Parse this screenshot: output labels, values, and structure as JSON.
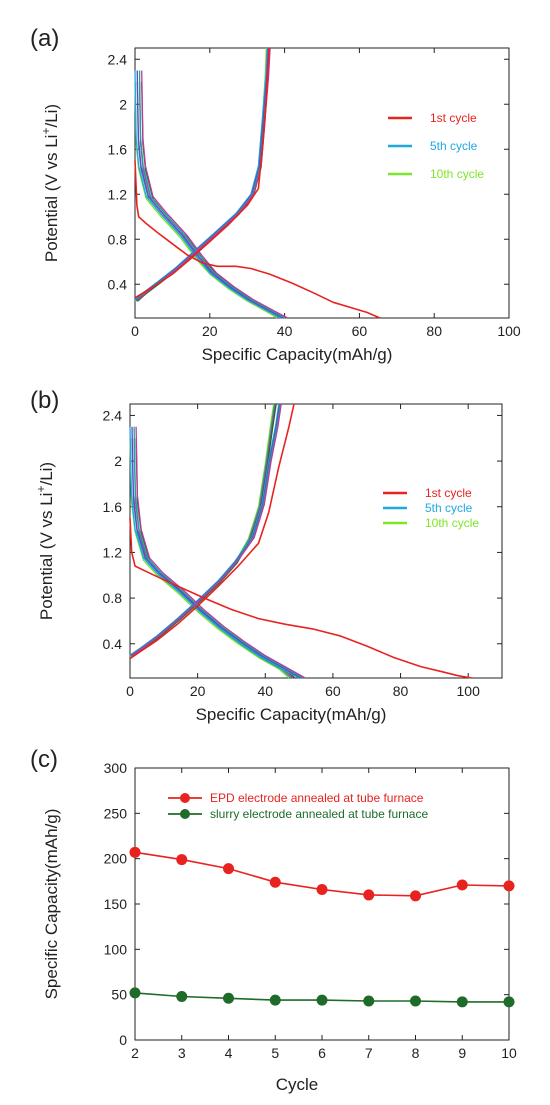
{
  "chart_data": [
    {
      "panel": "(a)",
      "type": "line",
      "xlabel": "Specific Capacity(mAh/g)",
      "ylabel": "Potential (V vs Li",
      "ylabel_sup": "+",
      "ylabel_end": "/Li)",
      "xlim": [
        0,
        100
      ],
      "ylim": [
        0.1,
        2.5
      ],
      "xticks": [
        0,
        20,
        40,
        60,
        80,
        100
      ],
      "yticks": [
        0.4,
        0.8,
        1.2,
        1.6,
        2,
        2.4
      ],
      "legend_position": "right",
      "series": [
        {
          "name": "1st cycle",
          "color": "#e8231f",
          "discharge": [
            [
              0,
              1.5
            ],
            [
              0.5,
              1.1
            ],
            [
              1,
              1.0
            ],
            [
              3,
              0.94
            ],
            [
              6,
              0.86
            ],
            [
              10,
              0.76
            ],
            [
              14,
              0.66
            ],
            [
              18,
              0.59
            ],
            [
              22,
              0.56
            ],
            [
              27,
              0.56
            ],
            [
              31,
              0.54
            ],
            [
              36,
              0.49
            ],
            [
              42,
              0.41
            ],
            [
              48,
              0.32
            ],
            [
              53,
              0.24
            ],
            [
              58,
              0.19
            ],
            [
              62,
              0.15
            ],
            [
              65.5,
              0.1
            ]
          ],
          "charge": [
            [
              0,
              0.28
            ],
            [
              1,
              0.3
            ],
            [
              5,
              0.38
            ],
            [
              10,
              0.49
            ],
            [
              15,
              0.63
            ],
            [
              20,
              0.78
            ],
            [
              25,
              0.93
            ],
            [
              30,
              1.1
            ],
            [
              33,
              1.25
            ],
            [
              34,
              1.6
            ],
            [
              35,
              2.0
            ],
            [
              35.8,
              2.5
            ]
          ]
        },
        {
          "name": "5th cycle",
          "color": "#1fa9e1",
          "discharge": [
            [
              0,
              2.3
            ],
            [
              0.3,
              1.7
            ],
            [
              1,
              1.45
            ],
            [
              3,
              1.18
            ],
            [
              7,
              1.02
            ],
            [
              12,
              0.84
            ],
            [
              16,
              0.66
            ],
            [
              20,
              0.5
            ],
            [
              25,
              0.37
            ],
            [
              30,
              0.26
            ],
            [
              35,
              0.17
            ],
            [
              39,
              0.1
            ]
          ],
          "charge": [
            [
              0,
              0.26
            ],
            [
              2,
              0.32
            ],
            [
              6,
              0.42
            ],
            [
              11,
              0.55
            ],
            [
              16,
              0.7
            ],
            [
              22,
              0.88
            ],
            [
              27,
              1.03
            ],
            [
              31,
              1.2
            ],
            [
              33,
              1.45
            ],
            [
              34,
              1.85
            ],
            [
              35,
              2.25
            ],
            [
              35.4,
              2.5
            ]
          ]
        },
        {
          "name": "10th cycle",
          "color": "#7fe52a",
          "discharge": [
            [
              0,
              2.2
            ],
            [
              0.3,
              1.65
            ],
            [
              1,
              1.42
            ],
            [
              3,
              1.16
            ],
            [
              7,
              1.0
            ],
            [
              12,
              0.82
            ],
            [
              16,
              0.64
            ],
            [
              20,
              0.49
            ],
            [
              25,
              0.36
            ],
            [
              30,
              0.25
            ],
            [
              35,
              0.16
            ],
            [
              38,
              0.1
            ]
          ],
          "charge": [
            [
              0,
              0.25
            ],
            [
              2,
              0.31
            ],
            [
              6,
              0.41
            ],
            [
              11,
              0.54
            ],
            [
              16,
              0.69
            ],
            [
              22,
              0.87
            ],
            [
              27,
              1.02
            ],
            [
              31,
              1.19
            ],
            [
              33,
              1.44
            ],
            [
              34,
              1.84
            ],
            [
              34.8,
              2.25
            ],
            [
              35.1,
              2.5
            ]
          ]
        }
      ]
    },
    {
      "panel": "(b)",
      "type": "line",
      "xlabel": "Specific Capacity(mAh/g)",
      "ylabel": "Potential (V vs Li",
      "ylabel_sup": "+",
      "ylabel_end": "/Li)",
      "xlim": [
        0,
        110
      ],
      "ylim": [
        0.1,
        2.5
      ],
      "xticks": [
        0,
        20,
        40,
        60,
        80,
        100
      ],
      "yticks": [
        0.4,
        0.8,
        1.2,
        1.6,
        2,
        2.4
      ],
      "legend_position": "right",
      "series": [
        {
          "name": "1st cycle",
          "color": "#e8231f",
          "discharge": [
            [
              0,
              1.5
            ],
            [
              0.5,
              1.2
            ],
            [
              1.5,
              1.08
            ],
            [
              5,
              1.03
            ],
            [
              10,
              0.96
            ],
            [
              16,
              0.88
            ],
            [
              22,
              0.8
            ],
            [
              30,
              0.7
            ],
            [
              38,
              0.62
            ],
            [
              46,
              0.57
            ],
            [
              54,
              0.53
            ],
            [
              62,
              0.47
            ],
            [
              70,
              0.38
            ],
            [
              78,
              0.28
            ],
            [
              86,
              0.2
            ],
            [
              93,
              0.15
            ],
            [
              97,
              0.12
            ],
            [
              101,
              0.1
            ]
          ],
          "charge": [
            [
              0,
              0.27
            ],
            [
              3,
              0.33
            ],
            [
              8,
              0.43
            ],
            [
              14,
              0.57
            ],
            [
              20,
              0.73
            ],
            [
              26,
              0.9
            ],
            [
              32,
              1.08
            ],
            [
              38,
              1.28
            ],
            [
              41,
              1.55
            ],
            [
              44,
              1.95
            ],
            [
              47,
              2.3
            ],
            [
              48.5,
              2.5
            ]
          ]
        },
        {
          "name": "5th cycle",
          "color": "#1fa9e1",
          "discharge": [
            [
              0,
              2.3
            ],
            [
              0.4,
              1.7
            ],
            [
              1.5,
              1.4
            ],
            [
              4,
              1.15
            ],
            [
              8,
              1.02
            ],
            [
              14,
              0.87
            ],
            [
              20,
              0.7
            ],
            [
              26,
              0.55
            ],
            [
              32,
              0.42
            ],
            [
              38,
              0.3
            ],
            [
              44,
              0.2
            ],
            [
              50,
              0.1
            ]
          ],
          "charge": [
            [
              0,
              0.3
            ],
            [
              3,
              0.36
            ],
            [
              8,
              0.47
            ],
            [
              14,
              0.62
            ],
            [
              20,
              0.78
            ],
            [
              26,
              0.95
            ],
            [
              31,
              1.12
            ],
            [
              36,
              1.33
            ],
            [
              39,
              1.62
            ],
            [
              41,
              2.0
            ],
            [
              43,
              2.3
            ],
            [
              44,
              2.5
            ]
          ]
        },
        {
          "name": "10th cycle",
          "color": "#7fe52a",
          "discharge": [
            [
              0,
              2.2
            ],
            [
              0.4,
              1.65
            ],
            [
              1.5,
              1.38
            ],
            [
              4,
              1.13
            ],
            [
              8,
              1.0
            ],
            [
              14,
              0.85
            ],
            [
              20,
              0.68
            ],
            [
              26,
              0.53
            ],
            [
              32,
              0.4
            ],
            [
              38,
              0.28
            ],
            [
              44,
              0.18
            ],
            [
              47,
              0.1
            ]
          ],
          "charge": [
            [
              0,
              0.29
            ],
            [
              3,
              0.35
            ],
            [
              8,
              0.46
            ],
            [
              14,
              0.61
            ],
            [
              20,
              0.77
            ],
            [
              26,
              0.94
            ],
            [
              31,
              1.11
            ],
            [
              35,
              1.32
            ],
            [
              38,
              1.6
            ],
            [
              40,
              1.98
            ],
            [
              41.5,
              2.3
            ],
            [
              42.5,
              2.5
            ]
          ]
        }
      ]
    },
    {
      "panel": "(c)",
      "type": "line",
      "xlabel": "Cycle",
      "ylabel": "Specific Capacity(mAh/g)",
      "xlim": [
        2,
        10
      ],
      "ylim": [
        0,
        300
      ],
      "xticks": [
        2,
        3,
        4,
        5,
        6,
        7,
        8,
        9,
        10
      ],
      "yticks": [
        0,
        50,
        100,
        150,
        200,
        250,
        300
      ],
      "legend_position": "top",
      "x": [
        2,
        3,
        4,
        5,
        6,
        7,
        8,
        9,
        10
      ],
      "series": [
        {
          "name": "EPD electrode annealed at tube furnace",
          "color": "#e8231f",
          "values": [
            207,
            199,
            189,
            174,
            166,
            160,
            159,
            171,
            170
          ]
        },
        {
          "name": "slurry electrode annealed at tube furnace",
          "color": "#1f6b2a",
          "values": [
            52,
            48,
            46,
            44,
            44,
            43,
            43,
            42,
            42
          ]
        }
      ]
    }
  ]
}
